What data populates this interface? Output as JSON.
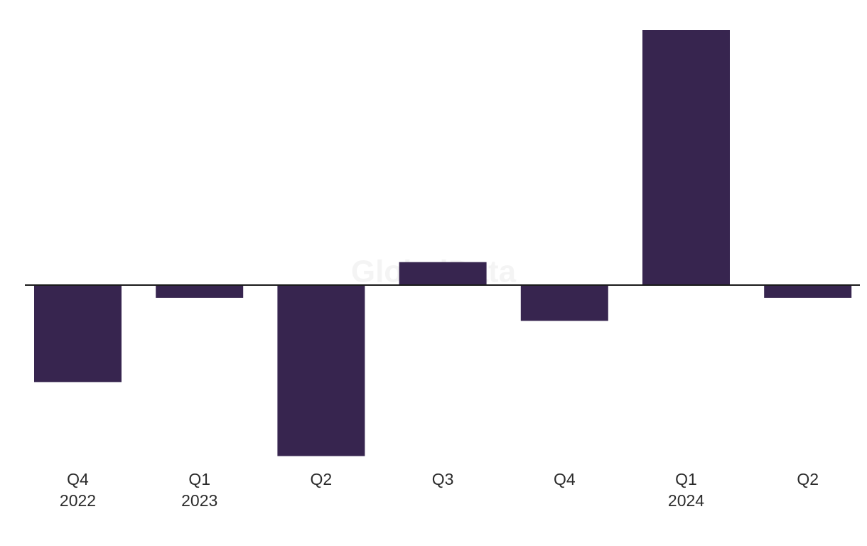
{
  "watermark": "GlobalData",
  "chart_data": {
    "type": "bar",
    "categories": [
      "Q4",
      "Q1",
      "Q2",
      "Q3",
      "Q4",
      "Q1",
      "Q2"
    ],
    "year_labels": [
      "2022",
      "2023",
      "",
      "",
      "",
      "2024",
      ""
    ],
    "values": [
      -38,
      -5,
      -67,
      9,
      -14,
      100,
      -5
    ],
    "ylim": [
      -67,
      100
    ],
    "grid": false,
    "legend": "none",
    "bar_color": "#37254f",
    "axis_color": "#1a1a1a"
  }
}
